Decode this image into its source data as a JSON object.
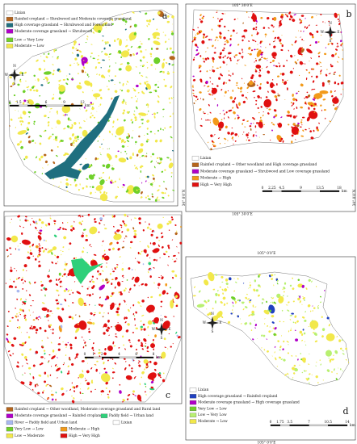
{
  "compass": {
    "n": "N",
    "s": "S",
    "e": "E",
    "w": "W"
  },
  "panels": [
    {
      "label": "a",
      "legend": [
        {
          "text": "Lixian",
          "color": "#ffffff"
        },
        {
          "text": "Rainfed cropland → Shrubwood and Moderate coverage grassland",
          "color": "#b5651d"
        },
        {
          "text": "High coverage grassland → Shrubwood and Forest land",
          "color": "#1f6f7f"
        },
        {
          "text": "Moderate coverage grassland → Shrubwood",
          "color": "#b000c8"
        },
        {
          "text": "Low → Very Low",
          "color": "#6fd02a"
        },
        {
          "text": "Moderate → Low",
          "color": "#f2e84a"
        }
      ],
      "scale": {
        "ticks": [
          0,
          1.5,
          3,
          6,
          9,
          12
        ],
        "unit": "km"
      }
    },
    {
      "label": "b",
      "coords": {
        "top": "105° 30′0″E",
        "bottom": "105° 30′0″E",
        "left": "34° 0′0″N",
        "right": "34° 0′0″N"
      },
      "legend": [
        {
          "text": "Lixian",
          "color": "#ffffff"
        },
        {
          "text": "Rainfed cropland → Other woodland and High coverage grassland",
          "color": "#b5651d"
        },
        {
          "text": "Moderate coverage grassland → Shrubwood and Low coverage grassland",
          "color": "#b000c8"
        },
        {
          "text": "Moderate → High",
          "color": "#f29a1a"
        },
        {
          "text": "High → Very High",
          "color": "#e01010"
        }
      ],
      "scale": {
        "ticks": [
          0,
          2.25,
          4.5,
          9,
          13.5,
          18
        ],
        "unit": "km"
      }
    },
    {
      "label": "c",
      "legend": [
        {
          "text": "Rainfed cropland → Other woodland, Moderate coverage grassland and Rural land",
          "color": "#b5651d"
        },
        {
          "text": "Moderate coverage grassland → Rainfed cropland",
          "color": "#b000c8"
        },
        {
          "text": "Paddy field → Urban land",
          "color": "#2ed07a"
        },
        {
          "text": "River → Paddy field and Urban land",
          "color": "#a8b8f0"
        },
        {
          "text": "Lixian",
          "color": "#ffffff"
        },
        {
          "text": "Very Low → Low",
          "color": "#6fd02a"
        },
        {
          "text": "Moderate → High",
          "color": "#f29a1a"
        },
        {
          "text": "Low → Moderate",
          "color": "#f2e84a"
        },
        {
          "text": "High → Very High",
          "color": "#e01010"
        }
      ],
      "scale": {
        "ticks": [
          0,
          1,
          2,
          4,
          6,
          8
        ],
        "unit": "km"
      }
    },
    {
      "label": "d",
      "coords": {
        "top": "105° 0′0″E",
        "bottom": "105° 0′0″E"
      },
      "legend": [
        {
          "text": "Lixian",
          "color": "#ffffff"
        },
        {
          "text": "High coverage grassland → Rainfed cropland",
          "color": "#2040c0"
        },
        {
          "text": "Moderate coverage grassland → High coverage grassland",
          "color": "#b000c8"
        },
        {
          "text": "Very Low → Low",
          "color": "#6fd02a"
        },
        {
          "text": "Low → Very Low",
          "color": "#b8f070"
        },
        {
          "text": "Moderate → Low",
          "color": "#f2e84a"
        }
      ],
      "scale": {
        "ticks": [
          0,
          1.75,
          3.5,
          7,
          10.5,
          14
        ],
        "unit": "km"
      }
    }
  ]
}
